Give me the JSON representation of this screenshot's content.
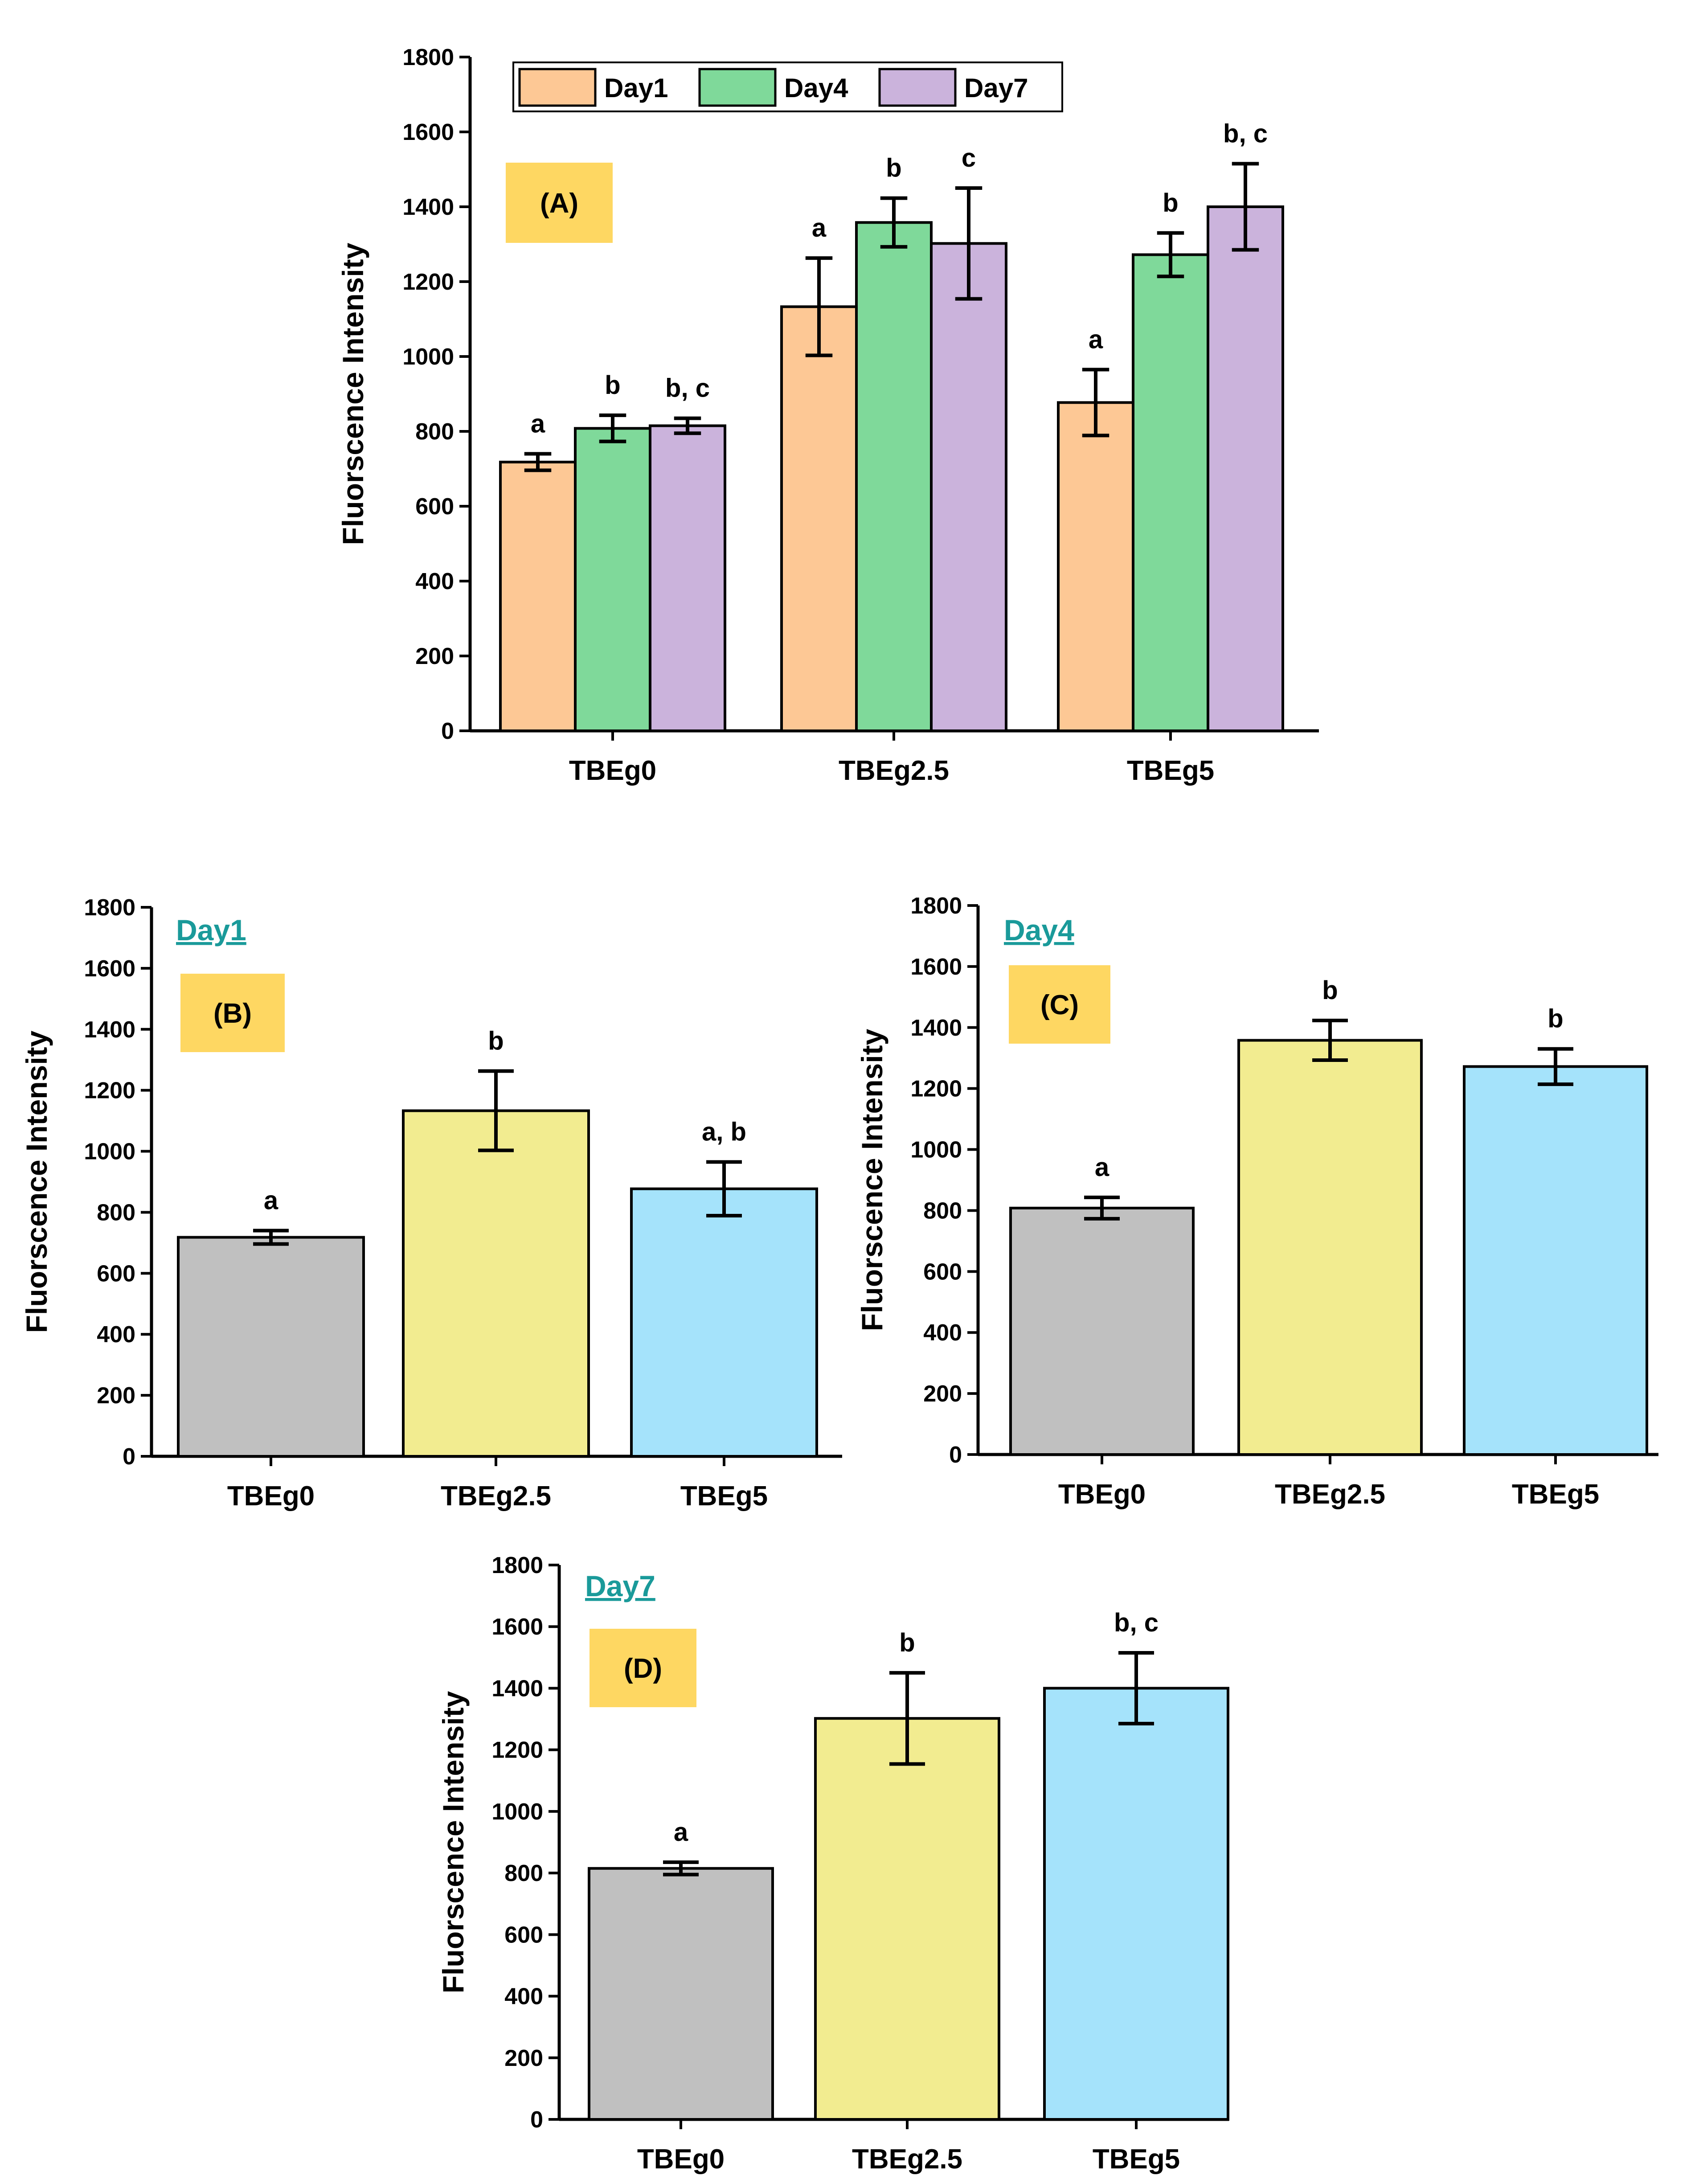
{
  "colors": {
    "day1": "#fdc895",
    "day4": "#7fd99a",
    "day7": "#cbb3dc",
    "tbeg0": "#c0c0c0",
    "tbeg2_5": "#f2ec90",
    "tbeg5": "#a5e3fb",
    "label_bg": "#fed762",
    "day_title": "#1a9a9a"
  },
  "chart_data": [
    {
      "id": "A",
      "type": "bar",
      "panel_label": "(A)",
      "ylabel": "Fluorscence Intensity",
      "ylim": [
        0,
        1800
      ],
      "yticks": [
        "0",
        "200",
        "400",
        "600",
        "800",
        "1000",
        "1200",
        "1400",
        "1600",
        "1800"
      ],
      "categories": [
        "TBEg0",
        "TBEg2.5",
        "TBEg5"
      ],
      "legend_position": "top",
      "series": [
        {
          "name": "Day1",
          "color_key": "day1",
          "values": [
            718,
            1133,
            877
          ],
          "errors": [
            22,
            130,
            88
          ],
          "labels": [
            "a",
            "a",
            "a"
          ]
        },
        {
          "name": "Day4",
          "color_key": "day4",
          "values": [
            808,
            1358,
            1272
          ],
          "errors": [
            35,
            65,
            58
          ],
          "labels": [
            "b",
            "b",
            "b"
          ]
        },
        {
          "name": "Day7",
          "color_key": "day7",
          "values": [
            815,
            1302,
            1400
          ],
          "errors": [
            20,
            148,
            115
          ],
          "labels": [
            "b, c",
            "c",
            "b, c"
          ]
        }
      ]
    },
    {
      "id": "B",
      "type": "bar",
      "panel_label": "(B)",
      "title": "Day1",
      "ylabel": "Fluorscence Intensity",
      "ylim": [
        0,
        1800
      ],
      "yticks": [
        "0",
        "200",
        "400",
        "600",
        "800",
        "1000",
        "1200",
        "1400",
        "1600",
        "1800"
      ],
      "categories": [
        "TBEg0",
        "TBEg2.5",
        "TBEg5"
      ],
      "color_keys": [
        "tbeg0",
        "tbeg2_5",
        "tbeg5"
      ],
      "values": [
        718,
        1133,
        877
      ],
      "errors": [
        22,
        130,
        88
      ],
      "labels": [
        "a",
        "b",
        "a, b"
      ]
    },
    {
      "id": "C",
      "type": "bar",
      "panel_label": "(C)",
      "title": "Day4",
      "ylabel": "Fluorscence Intensity",
      "ylim": [
        0,
        1800
      ],
      "yticks": [
        "0",
        "200",
        "400",
        "600",
        "800",
        "1000",
        "1200",
        "1400",
        "1600",
        "1800"
      ],
      "categories": [
        "TBEg0",
        "TBEg2.5",
        "TBEg5"
      ],
      "color_keys": [
        "tbeg0",
        "tbeg2_5",
        "tbeg5"
      ],
      "values": [
        808,
        1358,
        1272
      ],
      "errors": [
        35,
        65,
        58
      ],
      "labels": [
        "a",
        "b",
        "b"
      ]
    },
    {
      "id": "D",
      "type": "bar",
      "panel_label": "(D)",
      "title": "Day7",
      "ylabel": "Fluorscence Intensity",
      "ylim": [
        0,
        1800
      ],
      "yticks": [
        "0",
        "200",
        "400",
        "600",
        "800",
        "1000",
        "1200",
        "1400",
        "1600",
        "1800"
      ],
      "categories": [
        "TBEg0",
        "TBEg2.5",
        "TBEg5"
      ],
      "color_keys": [
        "tbeg0",
        "tbeg2_5",
        "tbeg5"
      ],
      "values": [
        815,
        1302,
        1400
      ],
      "errors": [
        20,
        148,
        115
      ],
      "labels": [
        "a",
        "b",
        "b, c"
      ]
    }
  ]
}
